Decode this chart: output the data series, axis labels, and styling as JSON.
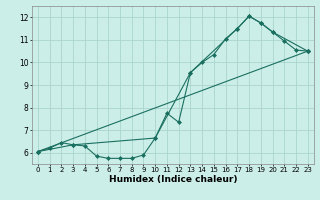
{
  "title": "",
  "xlabel": "Humidex (Indice chaleur)",
  "ylabel": "",
  "background_color": "#cceee8",
  "grid_color": "#aad4cc",
  "line_color": "#1a7060",
  "xlim": [
    -0.5,
    23.5
  ],
  "ylim": [
    5.5,
    12.5
  ],
  "xticks": [
    0,
    1,
    2,
    3,
    4,
    5,
    6,
    7,
    8,
    9,
    10,
    11,
    12,
    13,
    14,
    15,
    16,
    17,
    18,
    19,
    20,
    21,
    22,
    23
  ],
  "yticks": [
    6,
    7,
    8,
    9,
    10,
    11,
    12
  ],
  "series": [
    {
      "x": [
        0,
        1,
        2,
        3,
        4,
        5,
        6,
        7,
        8,
        9,
        10,
        11,
        12,
        13,
        14,
        15,
        16,
        17,
        18,
        19,
        20,
        21,
        22,
        23
      ],
      "y": [
        6.05,
        6.2,
        6.45,
        6.35,
        6.3,
        5.85,
        5.75,
        5.75,
        5.75,
        5.9,
        6.65,
        7.75,
        7.35,
        9.55,
        10.0,
        10.35,
        11.05,
        11.5,
        12.05,
        11.75,
        11.35,
        10.95,
        10.55,
        10.5
      ]
    },
    {
      "x": [
        0,
        3,
        10,
        13,
        17,
        18,
        19,
        20,
        23
      ],
      "y": [
        6.05,
        6.35,
        6.65,
        9.55,
        11.5,
        12.05,
        11.75,
        11.35,
        10.5
      ]
    },
    {
      "x": [
        0,
        23
      ],
      "y": [
        6.05,
        10.5
      ]
    }
  ]
}
